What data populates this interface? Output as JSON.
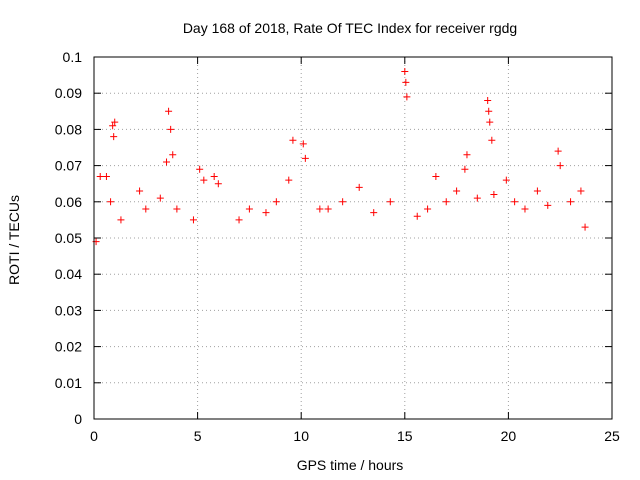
{
  "chart_data": {
    "type": "scatter",
    "title": "Day 168 of 2018, Rate Of TEC Index for receiver rgdg",
    "xlabel": "GPS time / hours",
    "ylabel": "ROTI / TECUs",
    "xlim": [
      0,
      25
    ],
    "ylim": [
      0,
      0.1
    ],
    "x_ticks": [
      "0",
      "5",
      "10",
      "15",
      "20",
      "25"
    ],
    "y_ticks": [
      "0",
      "0.01",
      "0.02",
      "0.03",
      "0.04",
      "0.05",
      "0.06",
      "0.07",
      "0.08",
      "0.09",
      "0.1"
    ],
    "grid": true,
    "marker": "+",
    "color": "#ff0000",
    "series": [
      {
        "points": [
          [
            0.1,
            0.049
          ],
          [
            0.3,
            0.067
          ],
          [
            0.6,
            0.067
          ],
          [
            0.8,
            0.06
          ],
          [
            0.9,
            0.081
          ],
          [
            0.95,
            0.078
          ],
          [
            1.0,
            0.082
          ],
          [
            1.3,
            0.055
          ],
          [
            2.2,
            0.063
          ],
          [
            2.5,
            0.058
          ],
          [
            3.2,
            0.061
          ],
          [
            3.5,
            0.071
          ],
          [
            3.6,
            0.085
          ],
          [
            3.7,
            0.08
          ],
          [
            3.8,
            0.073
          ],
          [
            4.0,
            0.058
          ],
          [
            4.8,
            0.055
          ],
          [
            5.1,
            0.069
          ],
          [
            5.3,
            0.066
          ],
          [
            5.8,
            0.067
          ],
          [
            6.0,
            0.065
          ],
          [
            7.0,
            0.055
          ],
          [
            7.5,
            0.058
          ],
          [
            8.3,
            0.057
          ],
          [
            8.8,
            0.06
          ],
          [
            9.4,
            0.066
          ],
          [
            9.6,
            0.077
          ],
          [
            10.1,
            0.076
          ],
          [
            10.2,
            0.072
          ],
          [
            10.9,
            0.058
          ],
          [
            11.3,
            0.058
          ],
          [
            12.0,
            0.06
          ],
          [
            12.8,
            0.064
          ],
          [
            13.5,
            0.057
          ],
          [
            14.3,
            0.06
          ],
          [
            15.0,
            0.096
          ],
          [
            15.05,
            0.093
          ],
          [
            15.1,
            0.089
          ],
          [
            15.6,
            0.056
          ],
          [
            16.1,
            0.058
          ],
          [
            16.5,
            0.067
          ],
          [
            17.0,
            0.06
          ],
          [
            17.5,
            0.063
          ],
          [
            17.9,
            0.069
          ],
          [
            18.0,
            0.073
          ],
          [
            18.5,
            0.061
          ],
          [
            19.0,
            0.088
          ],
          [
            19.05,
            0.085
          ],
          [
            19.1,
            0.082
          ],
          [
            19.2,
            0.077
          ],
          [
            19.3,
            0.062
          ],
          [
            19.9,
            0.066
          ],
          [
            20.3,
            0.06
          ],
          [
            20.8,
            0.058
          ],
          [
            21.4,
            0.063
          ],
          [
            21.9,
            0.059
          ],
          [
            22.4,
            0.074
          ],
          [
            22.5,
            0.07
          ],
          [
            23.0,
            0.06
          ],
          [
            23.5,
            0.063
          ],
          [
            23.7,
            0.053
          ]
        ]
      }
    ]
  }
}
